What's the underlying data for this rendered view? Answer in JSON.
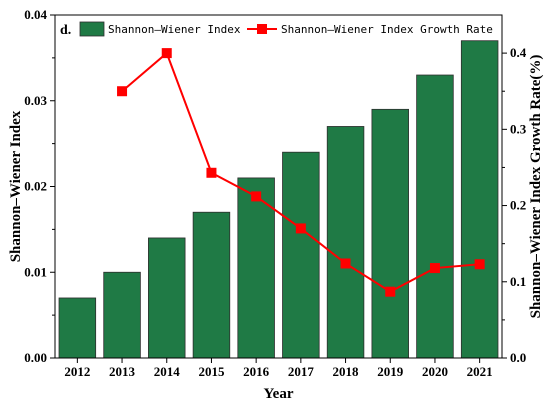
{
  "chart_data": {
    "type": "bar+line",
    "panel_label": "d.",
    "categories": [
      "2012",
      "2013",
      "2014",
      "2015",
      "2016",
      "2017",
      "2018",
      "2019",
      "2020",
      "2021"
    ],
    "series": [
      {
        "name": "Shannon–Wiener Index",
        "type": "bar",
        "axis": "left",
        "color": "#1f7a45",
        "values": [
          0.007,
          0.01,
          0.014,
          0.017,
          0.021,
          0.024,
          0.027,
          0.029,
          0.033,
          0.037
        ]
      },
      {
        "name": "Shannon–Wiener Index Growth Rate",
        "type": "line",
        "axis": "right",
        "color": "#ff0000",
        "values": [
          null,
          0.35,
          0.4,
          0.243,
          0.212,
          0.17,
          0.124,
          0.087,
          0.118,
          0.123
        ]
      }
    ],
    "xlabel": "Year",
    "ylabel_left": "Shannon–Wiener Index",
    "ylabel_right": "Shannon–Wiener Index Growth Rate(%)",
    "ylim_left": [
      0,
      0.04
    ],
    "ylim_right": [
      0,
      0.45
    ],
    "yticks_left": [
      "0.00",
      "0.01",
      "0.02",
      "0.03",
      "0.04"
    ],
    "yticks_left_values": [
      0,
      0.01,
      0.02,
      0.03,
      0.04
    ],
    "yticks_right": [
      "0.0",
      "0.1",
      "0.2",
      "0.3",
      "0.4"
    ],
    "yticks_right_values": [
      0,
      0.1,
      0.2,
      0.3,
      0.4
    ],
    "legend": "top",
    "grid": false
  }
}
